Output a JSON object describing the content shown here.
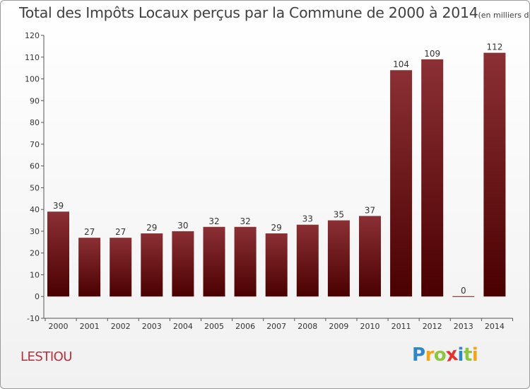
{
  "title": "Total des Impôts Locaux perçus par la Commune de 2000 à 2014",
  "unit_note": "(en milliers d'€)",
  "commune": "LESTIOU",
  "logo": {
    "letters": [
      "P",
      "r",
      "o",
      "x",
      "i",
      "t",
      "i"
    ],
    "colors": [
      "#2f87c8",
      "#f2a41c",
      "#8cc63f",
      "#e8302a",
      "#2f87c8",
      "#8cc63f",
      "#f2a41c"
    ]
  },
  "colors": {
    "bar_top": "#8b3035",
    "bar_bottom": "#4a0000",
    "title": "#404040",
    "commune": "#b5313a"
  },
  "chart_data": {
    "type": "bar",
    "title": "Total des Impôts Locaux perçus par la Commune de 2000 à 2014",
    "xlabel": "",
    "ylabel": "",
    "categories": [
      "2000",
      "2001",
      "2002",
      "2003",
      "2004",
      "2005",
      "2006",
      "2007",
      "2008",
      "2009",
      "2010",
      "2011",
      "2012",
      "2013",
      "2014"
    ],
    "values": [
      39,
      27,
      27,
      29,
      30,
      32,
      32,
      29,
      33,
      35,
      37,
      104,
      109,
      0,
      112
    ],
    "ylim": [
      -10,
      120
    ],
    "yticks": [
      -10,
      0,
      10,
      20,
      30,
      40,
      50,
      60,
      70,
      80,
      90,
      100,
      110,
      120
    ],
    "grid": false,
    "legend": "none"
  }
}
